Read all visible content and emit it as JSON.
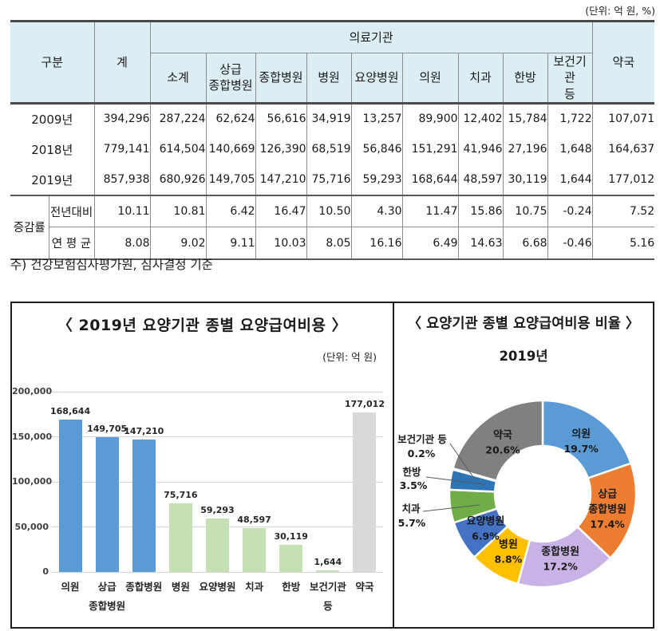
{
  "unit_top": "(단위: 억 원, %)",
  "note": "주) 건강보험심사평가원, 심사결정 기준",
  "table": {
    "header": {
      "gubun": "구분",
      "total": "계",
      "medical_group": "의료기관",
      "subcols": [
        "소계",
        "상급\n종합병원",
        "종합병원",
        "병원",
        "요양병원",
        "의원",
        "치과",
        "한방",
        "보건기관\n등"
      ],
      "pharmacy": "약국"
    },
    "rows": [
      {
        "label": "2009년",
        "values": [
          "394,296",
          "287,224",
          "62,624",
          "56,616",
          "34,919",
          "13,257",
          "89,900",
          "12,402",
          "15,784",
          "1,722",
          "107,071"
        ]
      },
      {
        "label": "2018년",
        "values": [
          "779,141",
          "614,504",
          "140,669",
          "126,390",
          "68,519",
          "56,846",
          "151,291",
          "41,946",
          "27,196",
          "1,648",
          "164,637"
        ]
      },
      {
        "label": "2019년",
        "values": [
          "857,938",
          "680,926",
          "149,705",
          "147,210",
          "75,716",
          "59,293",
          "168,644",
          "48,597",
          "30,119",
          "1,644",
          "177,012"
        ]
      }
    ],
    "growth": {
      "label": "증감률",
      "rows": [
        {
          "label": "전년대비",
          "values": [
            "10.11",
            "10.81",
            "6.42",
            "16.47",
            "10.50",
            "4.30",
            "11.47",
            "15.86",
            "10.75",
            "-0.24",
            "7.52"
          ]
        },
        {
          "label": "연 평 균",
          "values": [
            "8.08",
            "9.02",
            "9.11",
            "10.03",
            "8.05",
            "16.16",
            "6.49",
            "14.63",
            "6.68",
            "-0.46",
            "5.16"
          ]
        }
      ]
    }
  },
  "chart_data": [
    {
      "type": "bar",
      "title": "〈 2019년 요양기관 종별 요양급여비용 〉",
      "unit": "(단위: 억 원)",
      "categories": [
        "의원",
        "상급\n종합병원",
        "종합병원",
        "병원",
        "요양병원",
        "치과",
        "한방",
        "보건기관\n등",
        "약국"
      ],
      "values": [
        168644,
        149705,
        147210,
        75716,
        59293,
        48597,
        30119,
        1644,
        177012
      ],
      "value_labels": [
        "168,644",
        "149,705",
        "147,210",
        "75,716",
        "59,293",
        "48,597",
        "30,119",
        "1,644",
        "177,012"
      ],
      "bar_colors": [
        "#5B9BD5",
        "#5B9BD5",
        "#5B9BD5",
        "#C6E0B4",
        "#C6E0B4",
        "#C6E0B4",
        "#C6E0B4",
        "#C6E0B4",
        "#D9D9D9"
      ],
      "xlabel": "",
      "ylabel": "",
      "ylim": [
        0,
        200000
      ],
      "ytick_interval": 50000,
      "yticks": [
        "0",
        "50,000",
        "100,000",
        "150,000",
        "200,000"
      ],
      "grid": true,
      "legend": "none"
    },
    {
      "type": "pie",
      "donut": true,
      "title": "〈 요양기관 종별 요양급여비용 비율 〉",
      "subtitle": "2019년",
      "slices": [
        {
          "label": "의원",
          "pct": 19.7,
          "pct_label": "19.7%",
          "color": "#5B9BD5",
          "label_pos": "inside"
        },
        {
          "label": "상급종합병원",
          "pct": 17.4,
          "pct_label": "17.4%",
          "color": "#ED7D31",
          "label_pos": "inside",
          "lines": [
            "상급",
            "종합병원"
          ]
        },
        {
          "label": "종합병원",
          "pct": 17.2,
          "pct_label": "17.2%",
          "color": "#C9B3E6",
          "label_pos": "inside"
        },
        {
          "label": "병원",
          "pct": 8.8,
          "pct_label": "8.8%",
          "color": "#FFC000",
          "label_pos": "inside"
        },
        {
          "label": "요양병원",
          "pct": 6.9,
          "pct_label": "6.9%",
          "color": "#4472C4",
          "label_pos": "inside"
        },
        {
          "label": "치과",
          "pct": 5.7,
          "pct_label": "5.7%",
          "color": "#70AD47",
          "label_pos": "outside"
        },
        {
          "label": "한방",
          "pct": 3.5,
          "pct_label": "3.5%",
          "color": "#2E75B6",
          "label_pos": "outside"
        },
        {
          "label": "보건기관 등",
          "pct": 0.2,
          "pct_label": "0.2%",
          "color": "#1F4E79",
          "label_pos": "outside"
        },
        {
          "label": "약국",
          "pct": 20.6,
          "pct_label": "20.6%",
          "color": "#808080",
          "label_pos": "inside"
        }
      ],
      "legend": "none"
    }
  ]
}
